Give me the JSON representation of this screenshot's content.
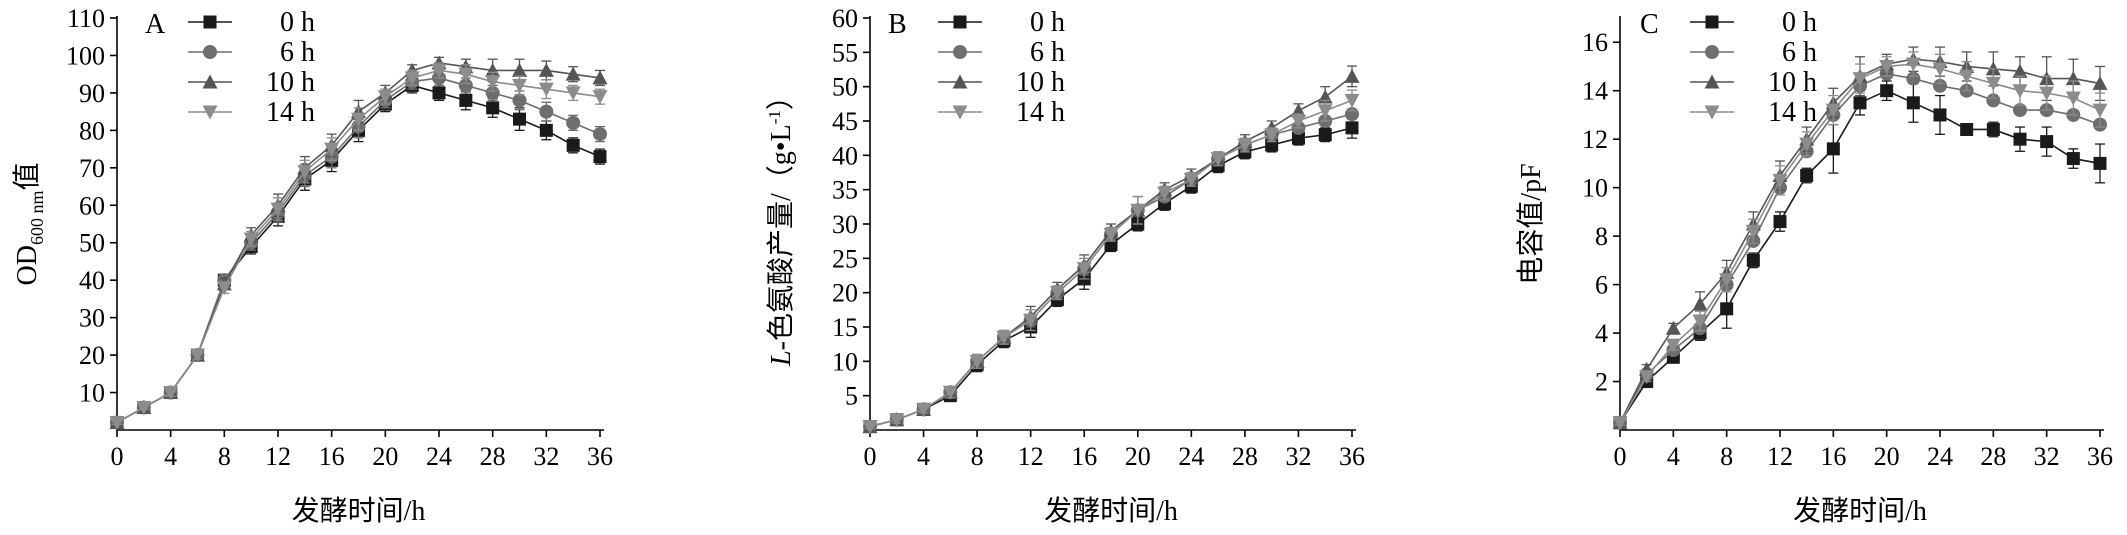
{
  "chart_data": [
    {
      "type": "line",
      "panel": "A",
      "title": "",
      "xlabel": "发酵时间/h",
      "ylabel_parts": [
        "OD",
        "600 nm",
        "值"
      ],
      "xlim": [
        0,
        36
      ],
      "ylim": [
        0,
        110
      ],
      "xticks": [
        0,
        4,
        8,
        12,
        16,
        20,
        24,
        28,
        32,
        36
      ],
      "yticks": [
        10,
        20,
        30,
        40,
        50,
        60,
        70,
        80,
        90,
        100,
        110
      ],
      "x": [
        0,
        2,
        4,
        6,
        8,
        10,
        12,
        14,
        16,
        18,
        20,
        22,
        24,
        26,
        28,
        30,
        32,
        34,
        36
      ],
      "legend_location": "top-left",
      "grid": false,
      "series": [
        {
          "name": "0 h",
          "marker": "square",
          "color": "#1a1a1a",
          "values": [
            2,
            6,
            10,
            20,
            40,
            49,
            57,
            67,
            72,
            80,
            87,
            92,
            90,
            88,
            86,
            83,
            80,
            76,
            73
          ],
          "errors": [
            0.5,
            0.5,
            1,
            1,
            1.5,
            2,
            2.5,
            3,
            3,
            3,
            2,
            2,
            2,
            2.5,
            2.5,
            3,
            2.5,
            2,
            2
          ]
        },
        {
          "name": "6 h",
          "marker": "circle",
          "color": "#6e6e6e",
          "values": [
            2,
            6,
            10,
            20,
            40,
            50,
            58,
            68,
            73,
            81,
            88,
            93,
            94,
            92,
            90,
            88,
            85,
            82,
            79
          ],
          "errors": [
            0.5,
            0.5,
            1,
            1,
            1.5,
            2,
            2.5,
            3,
            3,
            3,
            2,
            2,
            2,
            2,
            2,
            2.5,
            2.5,
            2,
            2
          ]
        },
        {
          "name": "10 h",
          "marker": "triangle-up",
          "color": "#555555",
          "values": [
            2,
            6,
            10,
            20,
            39,
            52,
            60,
            70,
            76,
            85,
            90,
            96,
            98,
            97,
            96,
            96,
            96,
            95,
            94
          ],
          "errors": [
            0.5,
            0.5,
            1,
            1,
            1.5,
            2,
            3,
            3,
            3,
            3,
            2,
            1.5,
            1.5,
            2,
            3,
            3,
            2.5,
            2,
            2
          ]
        },
        {
          "name": "14 h",
          "marker": "triangle-down",
          "color": "#8c8c8c",
          "values": [
            2,
            6,
            10,
            20,
            38,
            51,
            59,
            69,
            75,
            83,
            89,
            94,
            96,
            95,
            93,
            92,
            91,
            90,
            89
          ],
          "errors": [
            0.5,
            0.5,
            1,
            1,
            1.5,
            2,
            3,
            3,
            3,
            3,
            2,
            2,
            2,
            2.5,
            2.5,
            2.5,
            2.5,
            2,
            2
          ]
        }
      ]
    },
    {
      "type": "line",
      "panel": "B",
      "title": "",
      "xlabel": "发酵时间/h",
      "ylabel_parts": [
        "L",
        "-色氨酸产量/（g•L",
        "-1",
        "）"
      ],
      "xlim": [
        0,
        36
      ],
      "ylim": [
        0,
        60
      ],
      "xticks": [
        0,
        4,
        8,
        12,
        16,
        20,
        24,
        28,
        32,
        36
      ],
      "yticks": [
        5,
        10,
        15,
        20,
        25,
        30,
        35,
        40,
        45,
        50,
        55,
        60
      ],
      "x": [
        0,
        2,
        4,
        6,
        8,
        10,
        12,
        14,
        16,
        18,
        20,
        22,
        24,
        26,
        28,
        30,
        32,
        34,
        36
      ],
      "legend_location": "top-left",
      "grid": false,
      "series": [
        {
          "name": "0 h",
          "marker": "square",
          "color": "#1a1a1a",
          "values": [
            0.5,
            1.5,
            3,
            5,
            9.5,
            13,
            15,
            19,
            22,
            27,
            30,
            33,
            35.5,
            38.5,
            40.5,
            41.5,
            42.5,
            43,
            44
          ],
          "errors": [
            0.3,
            0.5,
            0.5,
            0.8,
            1,
            1,
            1.5,
            1,
            1.5,
            1,
            1,
            1,
            1,
            1,
            1,
            1,
            1,
            1,
            1.5
          ]
        },
        {
          "name": "6 h",
          "marker": "circle",
          "color": "#6e6e6e",
          "values": [
            0.5,
            1.5,
            3,
            5.5,
            10,
            13.5,
            16,
            20,
            23.5,
            28.5,
            32,
            34,
            36.5,
            39.5,
            41.5,
            43,
            44,
            45,
            46
          ]
        },
        {
          "name": "10 h",
          "marker": "triangle-up",
          "color": "#555555",
          "values": [
            0.5,
            1.5,
            3,
            5.5,
            10,
            13.5,
            16.5,
            20.5,
            24,
            29,
            32,
            35,
            37,
            39.5,
            42,
            44,
            46.5,
            48.5,
            51.5
          ],
          "errors": [
            0.3,
            0.5,
            0.5,
            0.8,
            1,
            1,
            1.5,
            1,
            1.5,
            1,
            2,
            1,
            1,
            1,
            1,
            1,
            1,
            1.5,
            1.5
          ]
        },
        {
          "name": "14 h",
          "marker": "triangle-down",
          "color": "#8c8c8c",
          "values": [
            0.5,
            1.5,
            3,
            5.5,
            10,
            13.5,
            16,
            20,
            23.5,
            28.5,
            32,
            34.5,
            36.5,
            39.5,
            41.5,
            43,
            45,
            46.5,
            48
          ],
          "errors": [
            0.3,
            0.5,
            0.5,
            0.8,
            1,
            1,
            1.5,
            1,
            1.5,
            1,
            2,
            1,
            1,
            1,
            1,
            1,
            1,
            1.5,
            1.5
          ]
        }
      ]
    },
    {
      "type": "line",
      "panel": "C",
      "title": "",
      "xlabel": "发酵时间/h",
      "ylabel_parts": [
        "电容值/pF"
      ],
      "xlim": [
        0,
        36
      ],
      "ylim": [
        0,
        17
      ],
      "xticks": [
        0,
        4,
        8,
        12,
        16,
        20,
        24,
        28,
        32,
        36
      ],
      "yticks": [
        2,
        4,
        6,
        8,
        10,
        12,
        14,
        16
      ],
      "x": [
        0,
        2,
        4,
        6,
        8,
        10,
        12,
        14,
        16,
        18,
        20,
        22,
        24,
        26,
        28,
        30,
        32,
        34,
        36
      ],
      "legend_location": "top-left",
      "grid": false,
      "series": [
        {
          "name": "0 h",
          "marker": "square",
          "color": "#1a1a1a",
          "values": [
            0.3,
            2,
            3,
            4,
            5,
            7,
            8.6,
            10.5,
            11.6,
            13.5,
            14,
            13.5,
            13,
            12.4,
            12.4,
            12,
            11.9,
            11.2,
            11
          ],
          "errors": [
            0.1,
            0.2,
            0.2,
            0.3,
            0.8,
            0.3,
            0.4,
            0.3,
            1,
            0.5,
            0.4,
            0.8,
            0.8,
            0.2,
            0.3,
            0.5,
            0.6,
            0.4,
            0.8
          ]
        },
        {
          "name": "6 h",
          "marker": "circle",
          "color": "#6e6e6e",
          "values": [
            0.3,
            2.3,
            3.3,
            4.2,
            6,
            7.8,
            10,
            11.5,
            13,
            14.2,
            14.7,
            14.5,
            14.2,
            14,
            13.6,
            13.2,
            13.2,
            13,
            12.6
          ]
        },
        {
          "name": "10 h",
          "marker": "triangle-up",
          "color": "#555555",
          "values": [
            0.3,
            2.5,
            4.2,
            5.2,
            6.5,
            8.5,
            10.5,
            12,
            13.5,
            14.6,
            15.1,
            15.3,
            15.2,
            15,
            14.9,
            14.8,
            14.5,
            14.5,
            14.3
          ],
          "errors": [
            0.1,
            0.2,
            0.2,
            0.5,
            0.5,
            0.5,
            0.6,
            0.5,
            0.6,
            0.8,
            0.4,
            0.5,
            0.6,
            0.6,
            0.7,
            0.6,
            0.9,
            0.8,
            0.7
          ]
        },
        {
          "name": "14 h",
          "marker": "triangle-down",
          "color": "#8c8c8c",
          "values": [
            0.3,
            2.2,
            3.5,
            4.5,
            6.2,
            8.2,
            10.3,
            11.8,
            13.2,
            14.5,
            15,
            15.1,
            14.9,
            14.6,
            14.3,
            14,
            13.9,
            13.7,
            13.2
          ],
          "errors": [
            0.1,
            0.2,
            0.2,
            0.4,
            0.5,
            0.5,
            0.6,
            0.5,
            0.6,
            0.6,
            0.4,
            0.5,
            0.6,
            0.6,
            0.6,
            0.6,
            0.7,
            0.7,
            0.7
          ]
        }
      ]
    }
  ]
}
